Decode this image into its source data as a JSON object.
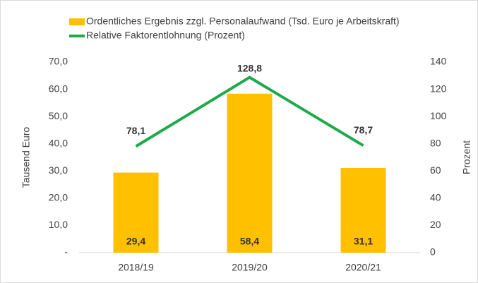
{
  "chart_data": {
    "type": "bar_line",
    "categories": [
      "2018/19",
      "2019/20",
      "2020/21"
    ],
    "series": [
      {
        "name": "Ordentliches Ergebnis zzgl. Personalaufwand (Tsd. Euro je Arbeitskraft)",
        "type": "bar",
        "color": "#FFC000",
        "values": [
          29.4,
          58.4,
          31.1
        ],
        "value_labels": [
          "29,4",
          "58,4",
          "31,1"
        ]
      },
      {
        "name": "Relative Faktorentlohnung (Prozent)",
        "type": "line",
        "axis": "y2",
        "color": "#1DAA4B",
        "values": [
          78.1,
          128.8,
          78.7
        ],
        "value_labels": [
          "78,1",
          "128,8",
          "78,7"
        ]
      }
    ],
    "ylabel": "Tausend Euro",
    "y2label": "Prozent",
    "ylim": [
      0,
      70
    ],
    "yticks": [
      {
        "value": 0,
        "label": "-"
      },
      {
        "value": 10,
        "label": "10,0"
      },
      {
        "value": 20,
        "label": "20,0"
      },
      {
        "value": 30,
        "label": "30,0"
      },
      {
        "value": 40,
        "label": "40,0"
      },
      {
        "value": 50,
        "label": "50,0"
      },
      {
        "value": 60,
        "label": "60,0"
      },
      {
        "value": 70,
        "label": "70,0"
      }
    ],
    "y2lim": [
      0,
      140
    ],
    "y2ticks": [
      0,
      20,
      40,
      60,
      80,
      100,
      120,
      140
    ],
    "grid": false,
    "legend": "top"
  }
}
